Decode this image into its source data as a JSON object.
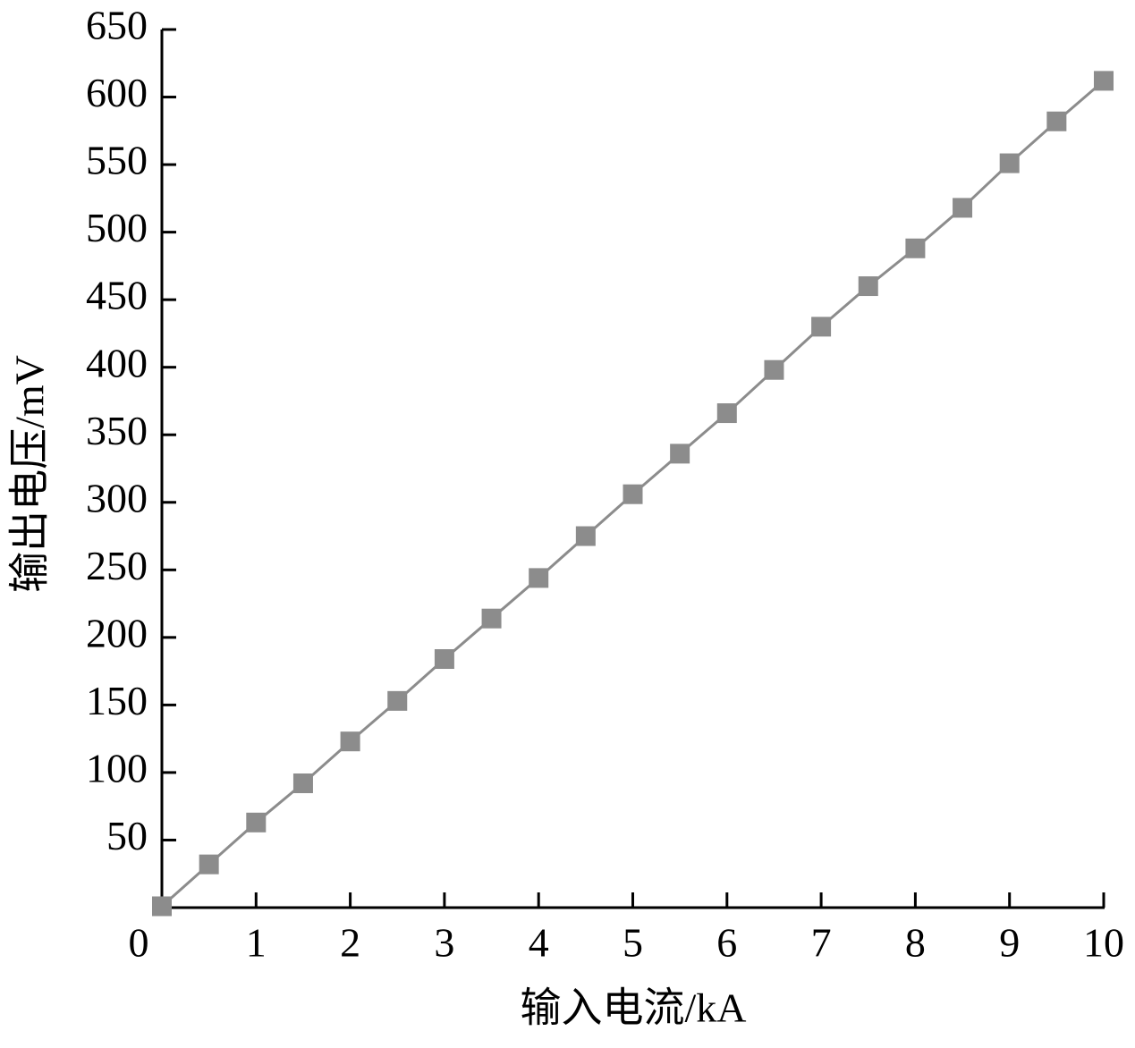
{
  "chart_data": {
    "type": "line",
    "x_label": "输入电流/kA",
    "y_label": "输出电压/mV",
    "x": [
      0,
      0.5,
      1,
      1.5,
      2,
      2.5,
      3,
      3.5,
      4,
      4.5,
      5,
      5.5,
      6,
      6.5,
      7,
      7.5,
      8,
      8.5,
      9,
      9.5,
      10
    ],
    "values": [
      1,
      32,
      63,
      92,
      123,
      153,
      184,
      214,
      244,
      275,
      306,
      336,
      366,
      398,
      430,
      460,
      488,
      518,
      551,
      582,
      612
    ],
    "color": "#8c8c8c",
    "marker": "square",
    "xlim": [
      0,
      10
    ],
    "xticks": [
      0,
      1,
      2,
      3,
      4,
      5,
      6,
      7,
      8,
      9,
      10
    ],
    "ylim": [
      0,
      650
    ],
    "yticks": [
      50,
      100,
      150,
      200,
      250,
      300,
      350,
      400,
      450,
      500,
      550,
      600,
      650
    ],
    "grid": false
  }
}
